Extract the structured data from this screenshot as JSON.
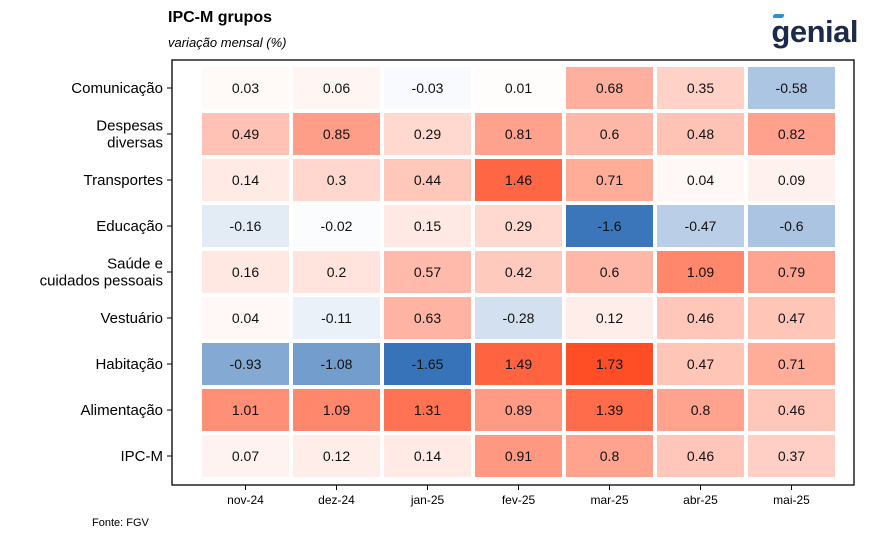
{
  "title": "IPC-M grupos",
  "subtitle": "variação mensal (%)",
  "logo_text": "genial",
  "source": "Fonte: FGV",
  "colors": {
    "negative": "#2e6db5",
    "neutral": "#ffffff",
    "positive": "#ff4e26"
  },
  "chart_data": {
    "type": "heatmap",
    "title": "IPC-M grupos",
    "subtitle": "variação mensal (%)",
    "x": [
      "nov-24",
      "dez-24",
      "jan-25",
      "fev-25",
      "mar-25",
      "abr-25",
      "mai-25"
    ],
    "y": [
      [
        "Comunicação"
      ],
      [
        "Despesas",
        "diversas"
      ],
      [
        "Transportes"
      ],
      [
        "Educação"
      ],
      [
        "Saúde e",
        "cuidados pessoais"
      ],
      [
        "Vestuário"
      ],
      [
        "Habitação"
      ],
      [
        "Alimentação"
      ],
      [
        "IPC-M"
      ]
    ],
    "values": [
      [
        "0.03",
        "0.06",
        "-0.03",
        "0.01",
        "0.68",
        "0.35",
        "-0.58"
      ],
      [
        "0.49",
        "0.85",
        "0.29",
        "0.81",
        "0.6",
        "0.48",
        "0.82"
      ],
      [
        "0.14",
        "0.3",
        "0.44",
        "1.46",
        "0.71",
        "0.04",
        "0.09"
      ],
      [
        "-0.16",
        "-0.02",
        "0.15",
        "0.29",
        "-1.6",
        "-0.47",
        "-0.6"
      ],
      [
        "0.16",
        "0.2",
        "0.57",
        "0.42",
        "0.6",
        "1.09",
        "0.79"
      ],
      [
        "0.04",
        "-0.11",
        "0.63",
        "-0.28",
        "0.12",
        "0.46",
        "0.47"
      ],
      [
        "-0.93",
        "-1.08",
        "-1.65",
        "1.49",
        "1.73",
        "0.47",
        "0.71"
      ],
      [
        "1.01",
        "1.09",
        "1.31",
        "0.89",
        "1.39",
        "0.8",
        "0.46"
      ],
      [
        "0.07",
        "0.12",
        "0.14",
        "0.91",
        "0.8",
        "0.46",
        "0.37"
      ]
    ],
    "color_range": [
      -1.73,
      1.73
    ]
  }
}
